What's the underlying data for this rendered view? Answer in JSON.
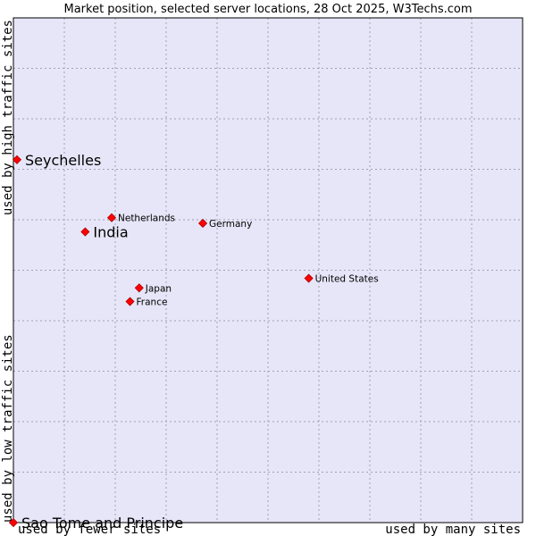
{
  "chart_data": {
    "type": "scatter",
    "title": "Market position, selected server locations, 28 Oct 2025, W3Techs.com",
    "x_axis": {
      "label_low": "used by fewer sites",
      "label_high": "used by many sites",
      "range": [
        0,
        10
      ]
    },
    "y_axis": {
      "label_low": "used by low traffic sites",
      "label_high": "used by high traffic sites",
      "range": [
        0,
        10
      ]
    },
    "grid": true,
    "colors": {
      "plot_background": "#e6e6f8",
      "grid": "#a0a0b4",
      "marker": "#ff0000",
      "marker_outline": "#aa0000"
    },
    "points": [
      {
        "name": "Seychelles",
        "x": 0.07,
        "y": 7.19,
        "highlight": true
      },
      {
        "name": "India",
        "x": 1.41,
        "y": 5.76,
        "highlight": true
      },
      {
        "name": "Netherlands",
        "x": 1.93,
        "y": 6.04,
        "highlight": false
      },
      {
        "name": "Germany",
        "x": 3.72,
        "y": 5.93,
        "highlight": false
      },
      {
        "name": "United States",
        "x": 5.8,
        "y": 4.84,
        "highlight": false
      },
      {
        "name": "Japan",
        "x": 2.47,
        "y": 4.65,
        "highlight": false
      },
      {
        "name": "France",
        "x": 2.29,
        "y": 4.38,
        "highlight": false
      },
      {
        "name": "Sao Tome and Principe",
        "x": 0.0,
        "y": 0.0,
        "highlight": true
      }
    ]
  }
}
